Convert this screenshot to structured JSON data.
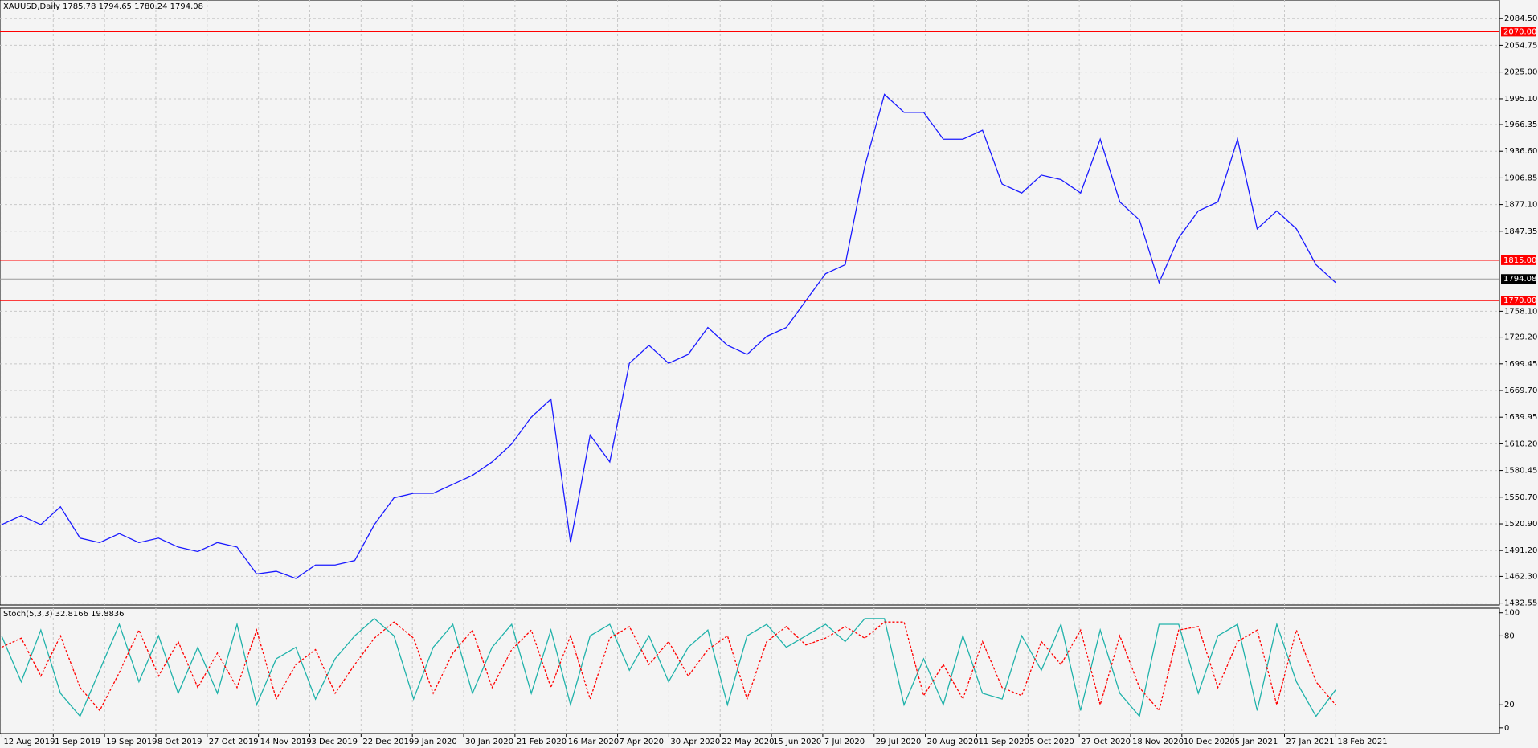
{
  "chart_data": [
    {
      "type": "line",
      "title": "XAUUSD,Daily  1785.78 1794.65 1780.24 1794.08",
      "series": [
        {
          "color": "#1a1aff",
          "values": [
            1520,
            1530,
            1520,
            1540,
            1505,
            1500,
            1510,
            1500,
            1505,
            1495,
            1490,
            1500,
            1495,
            1465,
            1468,
            1460,
            1475,
            1475,
            1480,
            1520,
            1550,
            1555,
            1555,
            1565,
            1575,
            1590,
            1610,
            1640,
            1660,
            1500,
            1620,
            1590,
            1700,
            1720,
            1700,
            1710,
            1740,
            1720,
            1710,
            1730,
            1740,
            1770,
            1800,
            1810,
            1920,
            2000,
            1980,
            1980,
            1950,
            1950,
            1960,
            1900,
            1890,
            1910,
            1905,
            1890,
            1950,
            1880,
            1860,
            1790,
            1840,
            1870,
            1880,
            1950,
            1850,
            1870,
            1850,
            1810,
            1790
          ]
        }
      ],
      "ylim": [
        1430.4,
        2105.3
      ],
      "yticks": [
        {
          "value": 2084.5,
          "label": "2084.50"
        },
        2054.75,
        {
          "value": 2025,
          "label": "2025.00"
        },
        {
          "value": 1995.1,
          "label": "1995.10"
        },
        1966.35,
        {
          "value": 1936.6,
          "label": "1936.60"
        },
        1906.85,
        {
          "value": 1877.1,
          "label": "1877.10"
        },
        1847.35,
        {
          "value": 1758.1,
          "label": "1758.10"
        },
        {
          "value": 1729.2,
          "label": "1729.20"
        },
        1699.45,
        {
          "value": 1669.7,
          "label": "1669.70"
        },
        1639.95,
        {
          "value": 1610.2,
          "label": "1610.20"
        },
        1580.45,
        {
          "value": 1550.7,
          "label": "1550.70"
        },
        {
          "value": 1520.9,
          "label": "1520.90"
        },
        {
          "value": 1491.2,
          "label": "1491.20"
        },
        {
          "value": 1462.3,
          "label": "1462.30"
        },
        1432.55
      ],
      "levels": {
        "values": [
          2070,
          1815,
          1770
        ],
        "value_labels": [
          "2070.00",
          "1815.00",
          "1770.00"
        ],
        "color": "#ff0000"
      },
      "current_price": 1794.08,
      "grid": true,
      "date_labels": [
        "12 Aug 2019",
        "1 Sep 2019",
        "19 Sep 2019",
        "8 Oct 2019",
        "27 Oct 2019",
        "14 Nov 2019",
        "3 Dec 2019",
        "22 Dec 2019",
        "9 Jan 2020",
        "30 Jan 2020",
        "21 Feb 2020",
        "16 Mar 2020",
        "7 Apr 2020",
        "30 Apr 2020",
        "22 May 2020",
        "15 Jun 2020",
        "7 Jul 2020",
        "29 Jul 2020",
        "20 Aug 2020",
        "11 Sep 2020",
        "5 Oct 2020",
        "27 Oct 2020",
        "18 Nov 2020",
        "10 Dec 2020",
        "5 Jan 2021",
        "27 Jan 2021",
        "18 Feb 2021"
      ]
    },
    {
      "type": "line",
      "title": "Stoch(5,3,3) 32.8166 19.8836",
      "series": [
        {
          "color": "#20b2aa",
          "values": [
            80,
            40,
            85,
            30,
            10,
            50,
            90,
            40,
            80,
            30,
            70,
            30,
            90,
            20,
            60,
            70,
            25,
            60,
            80,
            95,
            80,
            25,
            70,
            90,
            30,
            70,
            90,
            30,
            85,
            20,
            80,
            90,
            50,
            80,
            40,
            70,
            85,
            20,
            80,
            90,
            70,
            80,
            90,
            75,
            95,
            95,
            20,
            60,
            20,
            80,
            30,
            25,
            80,
            50,
            90,
            15,
            85,
            30,
            10,
            90,
            90,
            30,
            80,
            90,
            15,
            90,
            40,
            10,
            33
          ]
        },
        {
          "color": "#ff0000",
          "dashed": true,
          "values": [
            70,
            78,
            45,
            80,
            35,
            15,
            48,
            85,
            45,
            75,
            35,
            65,
            35,
            85,
            25,
            55,
            68,
            30,
            55,
            78,
            92,
            78,
            30,
            65,
            85,
            35,
            68,
            85,
            35,
            80,
            25,
            78,
            88,
            55,
            75,
            45,
            68,
            80,
            25,
            75,
            88,
            72,
            78,
            88,
            78,
            92,
            92,
            28,
            55,
            25,
            75,
            35,
            28,
            75,
            55,
            85,
            20,
            80,
            35,
            15,
            85,
            88,
            35,
            75,
            85,
            20,
            85,
            40,
            20
          ]
        }
      ],
      "ylim": [
        -5,
        104
      ],
      "yticks": [
        0,
        20,
        80,
        100
      ]
    }
  ]
}
